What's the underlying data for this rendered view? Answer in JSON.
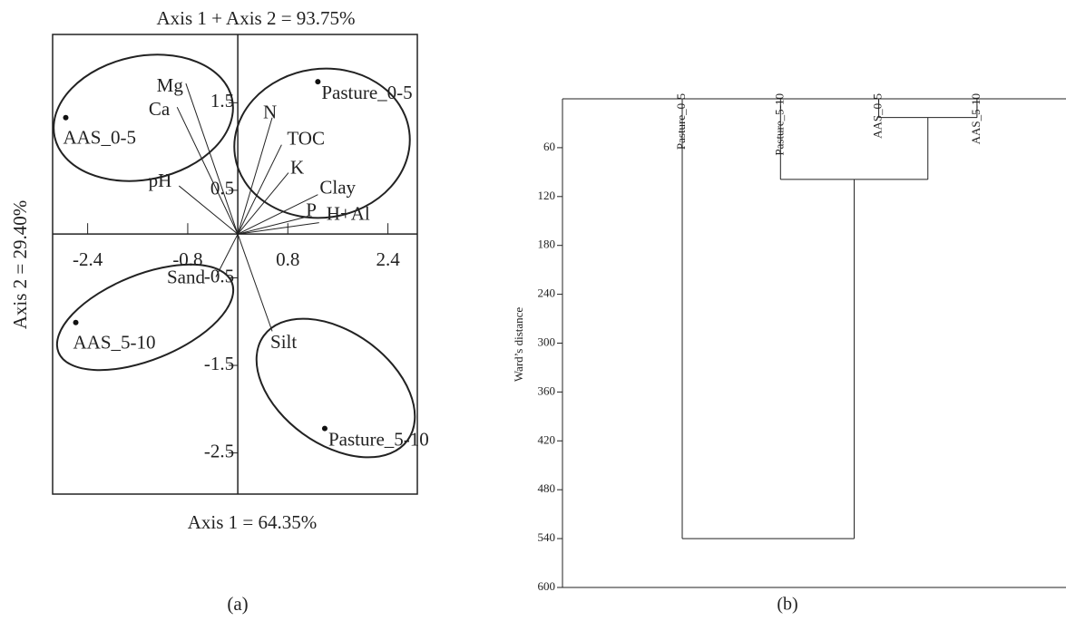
{
  "chart_data": [
    {
      "type": "biplot",
      "title": "Axis 1 + Axis 2 = 93.75%",
      "xlabel": "Axis 1 = 64.35%",
      "ylabel": "Axis 2 = 29.40%",
      "caption": "(a)",
      "xlim": [
        -2.96,
        2.87
      ],
      "ylim": [
        -2.97,
        2.28
      ],
      "xticks": [
        -2.4,
        -0.8,
        0.8,
        2.4
      ],
      "yticks": [
        1.5,
        0.5,
        -0.5,
        -1.5,
        -2.5
      ],
      "scores": [
        {
          "label": "AAS_0-5",
          "x": -2.75,
          "y": 1.33
        },
        {
          "label": "Pasture_0-5",
          "x": 1.28,
          "y": 1.74
        },
        {
          "label": "AAS_5-10",
          "x": -2.59,
          "y": -1.01
        },
        {
          "label": "Pasture_5-10",
          "x": 1.39,
          "y": -2.22
        }
      ],
      "loadings": [
        {
          "label": "Mg",
          "x": -0.83,
          "y": 1.72
        },
        {
          "label": "Ca",
          "x": -0.97,
          "y": 1.45
        },
        {
          "label": "pH",
          "x": -0.94,
          "y": 0.55
        },
        {
          "label": "N",
          "x": 0.55,
          "y": 1.33
        },
        {
          "label": "TOC",
          "x": 0.7,
          "y": 1.02
        },
        {
          "label": "K",
          "x": 0.81,
          "y": 0.7
        },
        {
          "label": "Clay",
          "x": 1.28,
          "y": 0.45
        },
        {
          "label": "P",
          "x": 1.06,
          "y": 0.19
        },
        {
          "label": "H+Al",
          "x": 1.3,
          "y": 0.13
        },
        {
          "label": "Sand",
          "x": -0.35,
          "y": -0.49
        },
        {
          "label": "Silt",
          "x": 0.55,
          "y": -1.11
        }
      ]
    },
    {
      "type": "dendrogram",
      "ylabel": "Ward’s distance",
      "caption": "(b)",
      "ylim": [
        0,
        600
      ],
      "yticks": [
        60,
        120,
        180,
        240,
        300,
        360,
        420,
        480,
        540,
        600
      ],
      "leaves": [
        "Pasture_0-5",
        "Pasture_5-10",
        "AAS_0-5",
        "AAS_5-10"
      ],
      "merges": [
        {
          "join": [
            2,
            3
          ],
          "height": 23
        },
        {
          "join": [
            1,
            4
          ],
          "height": 99
        },
        {
          "join": [
            0,
            5
          ],
          "height": 540
        }
      ]
    }
  ]
}
